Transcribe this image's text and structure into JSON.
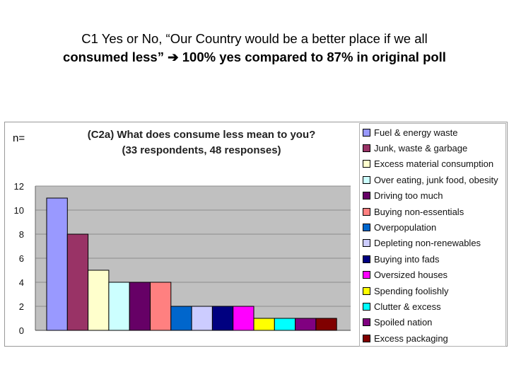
{
  "slide": {
    "title_line1": "C1 Yes or No, “Our Country would be a better place if we all",
    "title_line2_part1": "consumed less”",
    "title_arrow": "➔",
    "title_line2_part2": "100% yes compared to 87% in original poll",
    "n_label": "n="
  },
  "colors": {
    "plot_bg": "#c0c0c0",
    "gridline": "#8c8c8c"
  },
  "chart_data": {
    "type": "bar",
    "title": "(C2a) What does consume less mean to you?",
    "subtitle": "(33 respondents, 48 responses)",
    "xlabel": "",
    "ylabel": "",
    "ylim": [
      0,
      12
    ],
    "yticks": [
      "0",
      "2",
      "4",
      "6",
      "8",
      "10",
      "12"
    ],
    "grid": true,
    "legend_position": "right",
    "series": [
      {
        "name": "Fuel & energy waste",
        "value": 11,
        "color": "#9999ff"
      },
      {
        "name": "Junk, waste & garbage",
        "value": 8,
        "color": "#993366"
      },
      {
        "name": "Excess material consumption",
        "value": 5,
        "color": "#ffffcc"
      },
      {
        "name": "Over eating, junk food, obesity",
        "value": 4,
        "color": "#ccffff"
      },
      {
        "name": "Driving too much",
        "value": 4,
        "color": "#660066"
      },
      {
        "name": "Buying non-essentials",
        "value": 4,
        "color": "#ff8080"
      },
      {
        "name": "Overpopulation",
        "value": 2,
        "color": "#0066cc"
      },
      {
        "name": "Depleting non-renewables",
        "value": 2,
        "color": "#ccccff"
      },
      {
        "name": "Buying into fads",
        "value": 2,
        "color": "#000080"
      },
      {
        "name": "Oversized houses",
        "value": 2,
        "color": "#ff00ff"
      },
      {
        "name": "Spending foolishly",
        "value": 1,
        "color": "#ffff00"
      },
      {
        "name": "Clutter & excess",
        "value": 1,
        "color": "#00ffff"
      },
      {
        "name": "Spoiled nation",
        "value": 1,
        "color": "#800080"
      },
      {
        "name": "Excess packaging",
        "value": 1,
        "color": "#800000"
      }
    ]
  }
}
